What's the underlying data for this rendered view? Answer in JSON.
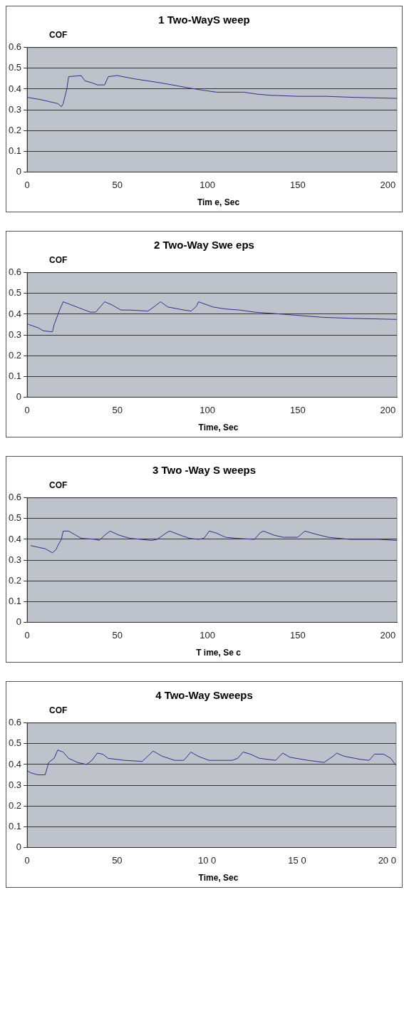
{
  "chart_data": [
    {
      "type": "line",
      "title": "1 Two-WayS weep",
      "ylabel": "COF",
      "xlabel": "Tim e, Sec",
      "color": "#3b2a8c",
      "marker": "none",
      "grid": "y",
      "xlim": [
        0,
        205
      ],
      "ylim": [
        0,
        0.6
      ],
      "xticks": [
        0,
        50,
        100,
        150,
        200
      ],
      "yticks": [
        0,
        0.1,
        0.2,
        0.3,
        0.4,
        0.5,
        0.6
      ],
      "x": [
        0,
        7,
        12,
        17,
        19,
        20,
        22,
        23,
        30,
        32,
        36,
        39,
        43,
        45,
        50,
        59,
        74,
        90,
        97,
        105,
        120,
        128,
        135,
        150,
        166,
        181,
        205
      ],
      "values": [
        0.36,
        0.35,
        0.34,
        0.33,
        0.315,
        0.33,
        0.4,
        0.46,
        0.465,
        0.44,
        0.43,
        0.42,
        0.42,
        0.46,
        0.465,
        0.45,
        0.43,
        0.405,
        0.395,
        0.385,
        0.385,
        0.375,
        0.37,
        0.365,
        0.365,
        0.36,
        0.355
      ]
    },
    {
      "type": "line",
      "title": "2 Two-Way Swe eps",
      "ylabel": "COF",
      "xlabel": "Time, Sec",
      "color": "#3b2a8c",
      "marker": "none",
      "grid": "y",
      "xlim": [
        0,
        205
      ],
      "ylim": [
        0,
        0.6
      ],
      "xticks": [
        0,
        50,
        100,
        150,
        200
      ],
      "yticks": [
        0,
        0.1,
        0.2,
        0.3,
        0.4,
        0.5,
        0.6
      ],
      "x": [
        0,
        1,
        6,
        9,
        14,
        15,
        18,
        20,
        23,
        29,
        35,
        38,
        41,
        43,
        47,
        52,
        57,
        67,
        71,
        74,
        78,
        87,
        91,
        94,
        95,
        103,
        110,
        118,
        126,
        134,
        149,
        164,
        180,
        205
      ],
      "values": [
        0.355,
        0.35,
        0.335,
        0.32,
        0.315,
        0.35,
        0.42,
        0.46,
        0.45,
        0.43,
        0.41,
        0.41,
        0.44,
        0.46,
        0.445,
        0.42,
        0.42,
        0.415,
        0.44,
        0.46,
        0.435,
        0.42,
        0.415,
        0.44,
        0.46,
        0.435,
        0.425,
        0.42,
        0.41,
        0.405,
        0.395,
        0.385,
        0.38,
        0.375
      ]
    },
    {
      "type": "line",
      "title": "3 Two -Way S weeps",
      "ylabel": "COF",
      "xlabel": "T ime, Se c",
      "color": "#3b2a8c",
      "marker": "none",
      "grid": "y",
      "xlim": [
        0,
        205
      ],
      "ylim": [
        0,
        0.6
      ],
      "xticks": [
        0,
        50,
        100,
        150,
        200
      ],
      "yticks": [
        0,
        0.1,
        0.2,
        0.3,
        0.4,
        0.5,
        0.6
      ],
      "x": [
        2,
        7,
        10,
        14,
        16,
        17,
        19,
        20,
        23,
        27,
        30,
        38,
        40,
        43,
        46,
        51,
        57,
        69,
        72,
        77,
        79,
        85,
        90,
        95,
        98,
        101,
        105,
        110,
        116,
        126,
        129,
        131,
        137,
        142,
        150,
        154,
        160,
        167,
        179,
        195,
        205
      ],
      "values": [
        0.37,
        0.36,
        0.355,
        0.335,
        0.35,
        0.37,
        0.4,
        0.44,
        0.44,
        0.42,
        0.405,
        0.4,
        0.395,
        0.42,
        0.44,
        0.42,
        0.405,
        0.395,
        0.4,
        0.43,
        0.44,
        0.42,
        0.405,
        0.4,
        0.405,
        0.44,
        0.43,
        0.41,
        0.405,
        0.4,
        0.43,
        0.44,
        0.42,
        0.41,
        0.41,
        0.44,
        0.425,
        0.41,
        0.4,
        0.4,
        0.395
      ]
    },
    {
      "type": "line",
      "title": "4 Two-Way Sweeps",
      "ylabel": "COF",
      "xlabel": "Time,  Sec",
      "color": "#3b2a8c",
      "marker": "none",
      "grid": "y",
      "xlim": [
        0,
        205
      ],
      "ylim": [
        0,
        0.6
      ],
      "xticks": [
        0,
        50,
        {
          "value": 100,
          "label": "10 0"
        },
        {
          "value": 150,
          "label": "15 0"
        },
        {
          "value": 200,
          "label": "20 0"
        }
      ],
      "yticks": [
        0,
        0.1,
        0.2,
        0.3,
        0.4,
        0.5,
        0.6
      ],
      "x": [
        0,
        2,
        6,
        10,
        12,
        15,
        17,
        20,
        23,
        28,
        33,
        36,
        39,
        42,
        45,
        54,
        64,
        67,
        70,
        75,
        82,
        87,
        91,
        95,
        101,
        114,
        117,
        120,
        124,
        129,
        138,
        142,
        146,
        156,
        165,
        170,
        172,
        176,
        185,
        190,
        193,
        198,
        202,
        205
      ],
      "values": [
        0.37,
        0.36,
        0.35,
        0.35,
        0.41,
        0.43,
        0.47,
        0.46,
        0.43,
        0.41,
        0.4,
        0.42,
        0.455,
        0.45,
        0.43,
        0.42,
        0.415,
        0.44,
        0.465,
        0.44,
        0.42,
        0.42,
        0.46,
        0.44,
        0.42,
        0.42,
        0.43,
        0.46,
        0.45,
        0.43,
        0.42,
        0.455,
        0.435,
        0.42,
        0.41,
        0.44,
        0.455,
        0.44,
        0.425,
        0.42,
        0.45,
        0.45,
        0.43,
        0.395
      ]
    }
  ]
}
